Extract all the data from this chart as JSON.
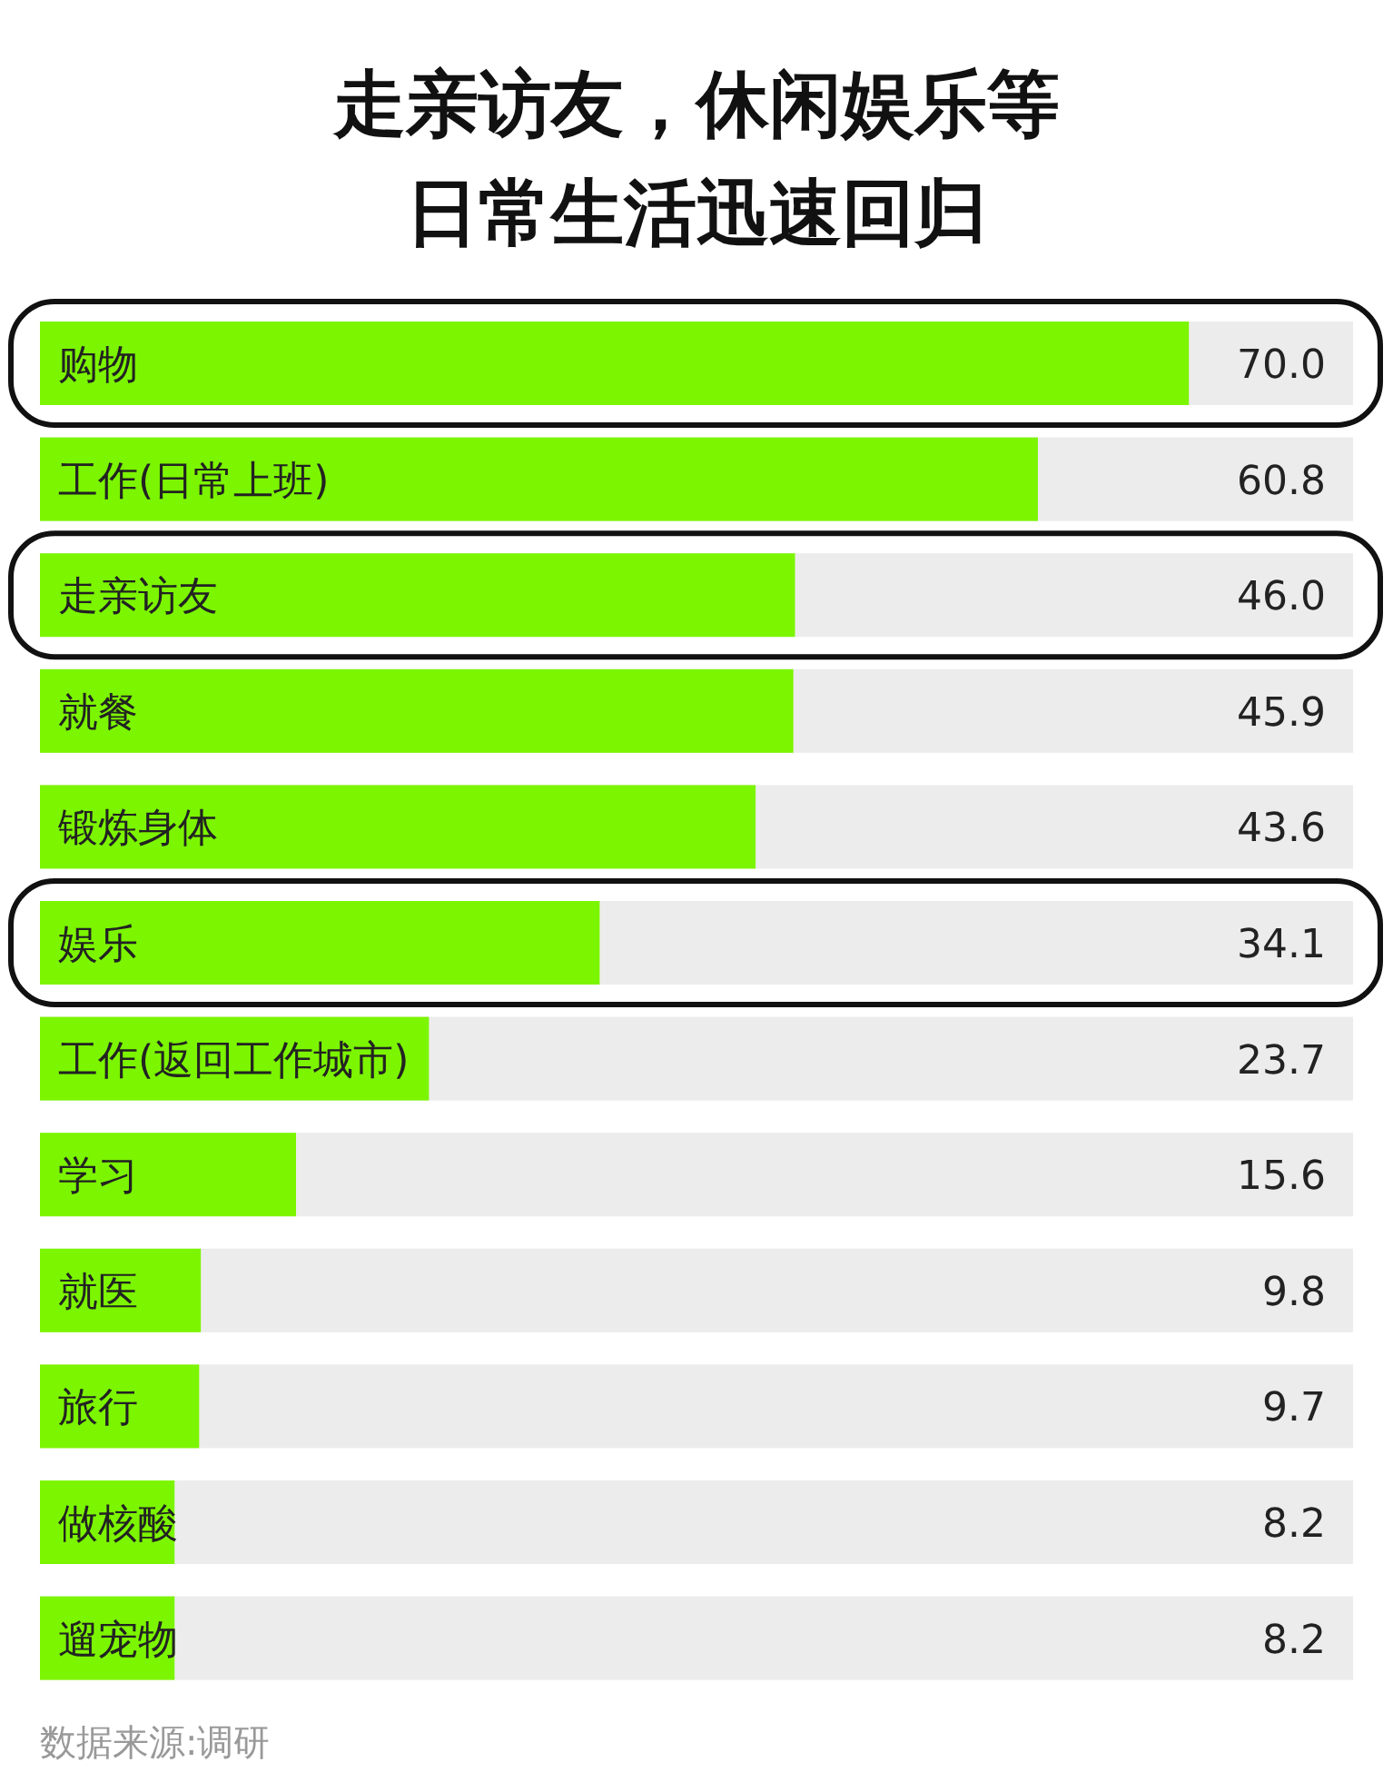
{
  "chart_data": {
    "type": "bar",
    "orientation": "horizontal",
    "title": "走亲访友，休闲娱乐等日常生活迅速回归",
    "categories": [
      "购物",
      "工作(日常上班)",
      "走亲访友",
      "就餐",
      "锻炼身体",
      "娱乐",
      "工作(返回工作城市)",
      "学习",
      "就医",
      "旅行",
      "做核酸",
      "遛宠物"
    ],
    "values": [
      70.0,
      60.8,
      46.0,
      45.9,
      43.6,
      34.1,
      23.7,
      15.6,
      9.8,
      9.7,
      8.2,
      8.2
    ],
    "value_labels": [
      "70.0",
      "60.8",
      "46.0",
      "45.9",
      "43.6",
      "34.1",
      "23.7",
      "15.6",
      "9.8",
      "9.7",
      "8.2",
      "8.2"
    ],
    "color": "#7cf500",
    "xlim": [
      0,
      80
    ],
    "annotations": [
      "数据来源:调研"
    ]
  }
}
